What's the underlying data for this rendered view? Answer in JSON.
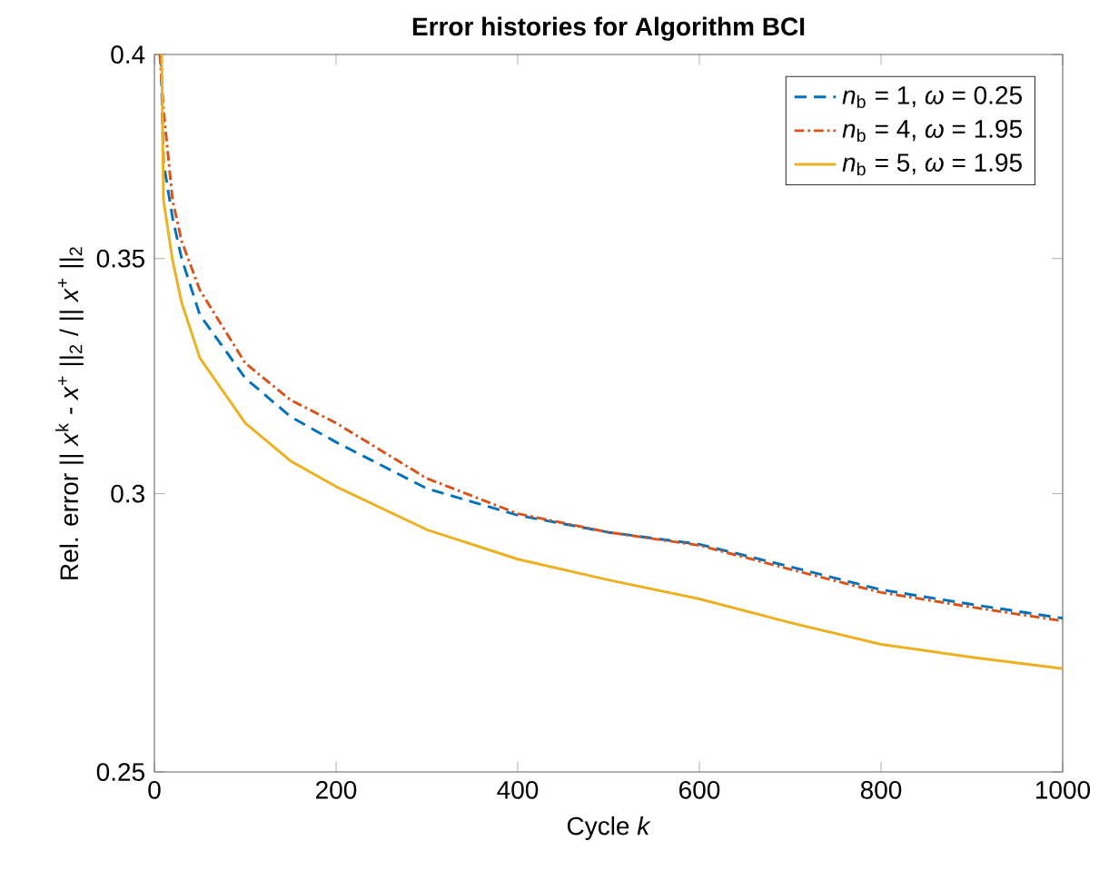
{
  "chart_data": {
    "type": "line",
    "title": "Error histories for Algorithm BCI",
    "xlabel": "Cycle *k*",
    "ylabel": "Rel. error || *x*$^{k}$ - *x*$^{+}$ ||$_{2}$ / || *x*$^{+}$ ||$_{2}$",
    "log": "y",
    "xlim": [
      0,
      1000
    ],
    "ylim": [
      0.25,
      0.4
    ],
    "xticks": [
      0,
      200,
      400,
      600,
      800,
      1000
    ],
    "yticks": [
      0.25,
      0.3,
      0.35,
      0.4
    ],
    "grid": false,
    "legend": "top right",
    "marker": "none",
    "series": [
      {
        "name": "*n*$_{b}$ = 1, *ω* = 0.25",
        "color": "#0072bd",
        "line_style": "dashed",
        "x": [
          7,
          10,
          20,
          30,
          50,
          100,
          150,
          200,
          300,
          400,
          500,
          600,
          700,
          800,
          900,
          1000
        ],
        "values": [
          0.4,
          0.3728,
          0.3594,
          0.35,
          0.3373,
          0.3236,
          0.3155,
          0.3103,
          0.301,
          0.2958,
          0.2925,
          0.2902,
          0.286,
          0.2817,
          0.279,
          0.2765
        ]
      },
      {
        "name": "*n*$_{b}$ = 4, *ω* = 1.95",
        "color": "#d95319",
        "line_style": "dashdot",
        "x": [
          6,
          10,
          20,
          30,
          50,
          100,
          150,
          200,
          300,
          400,
          500,
          600,
          700,
          800,
          900,
          1000
        ],
        "values": [
          0.4,
          0.386,
          0.3636,
          0.354,
          0.3428,
          0.3268,
          0.319,
          0.3142,
          0.303,
          0.2961,
          0.2925,
          0.29,
          0.2855,
          0.2812,
          0.2785,
          0.276
        ]
      },
      {
        "name": "*n*$_{b}$ = 5, *ω* = 1.95",
        "color": "#edb120",
        "line_style": "solid",
        "x": [
          8,
          10,
          20,
          30,
          50,
          100,
          150,
          200,
          300,
          400,
          500,
          600,
          700,
          800,
          900,
          1000
        ],
        "values": [
          0.4,
          0.3636,
          0.3496,
          0.34,
          0.3279,
          0.3142,
          0.3065,
          0.3014,
          0.293,
          0.2874,
          0.2835,
          0.28,
          0.2757,
          0.2718,
          0.2695,
          0.2675
        ]
      }
    ]
  }
}
